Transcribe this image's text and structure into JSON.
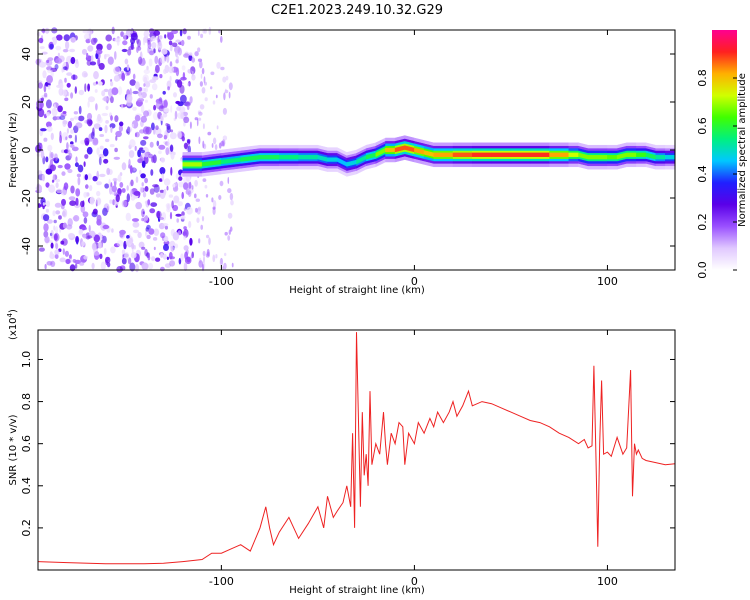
{
  "title": "C2E1.2023.249.10.32.G29",
  "chart_data": [
    {
      "type": "heatmap",
      "xlabel": "Height of straight line (km)",
      "ylabel": "Frequency (Hz)",
      "xlim": [
        -195,
        135
      ],
      "ylim": [
        -50,
        50
      ],
      "x_ticks": [
        -100,
        0,
        100
      ],
      "x_tick_labels": [
        "-100",
        "0",
        "100"
      ],
      "y_ticks": [
        -40,
        -20,
        0,
        20,
        40
      ],
      "y_tick_labels": [
        "-40",
        "-20",
        "0",
        "20",
        "40"
      ],
      "grid": false,
      "colorbar": {
        "label": "Normalized spectral amplitude",
        "range": [
          0,
          1
        ],
        "ticks": [
          0.0,
          0.2,
          0.4,
          0.6,
          0.8
        ],
        "tick_labels": [
          "0.0",
          "0.2",
          "0.4",
          "0.6",
          "0.8"
        ],
        "colormap": [
          "#ffffff",
          "#e0c8ff",
          "#9a50ff",
          "#5a00e8",
          "#2020ff",
          "#00c8ff",
          "#00f080",
          "#40ff00",
          "#d0ff00",
          "#ffb000",
          "#ff2020",
          "#ff0090"
        ]
      },
      "ridge": {
        "x": [
          -120,
          -110,
          -100,
          -90,
          -80,
          -70,
          -60,
          -50,
          -45,
          -40,
          -35,
          -30,
          -25,
          -20,
          -15,
          -10,
          -5,
          0,
          5,
          10,
          20,
          30,
          40,
          50,
          60,
          70,
          80,
          85,
          90,
          95,
          100,
          105,
          110,
          115,
          120,
          125,
          130,
          135
        ],
        "y": [
          -6,
          -6,
          -5,
          -4,
          -3,
          -3,
          -3,
          -3,
          -4,
          -4,
          -6,
          -5,
          -3,
          -2,
          0,
          0,
          1,
          0,
          -1,
          -2,
          -2,
          -2,
          -2,
          -2,
          -2,
          -2,
          -2,
          -2,
          -3,
          -3,
          -3,
          -3,
          -2,
          -2,
          -2,
          -3,
          -3,
          -3
        ],
        "amplitude": [
          0.75,
          0.65,
          0.55,
          0.55,
          0.6,
          0.55,
          0.55,
          0.5,
          0.5,
          0.45,
          0.45,
          0.5,
          0.55,
          0.6,
          0.75,
          0.85,
          0.9,
          0.85,
          0.8,
          0.8,
          0.85,
          0.9,
          0.9,
          0.9,
          0.9,
          0.9,
          0.75,
          0.7,
          0.65,
          0.7,
          0.65,
          0.65,
          0.7,
          0.65,
          0.6,
          0.55,
          0.5,
          0.45
        ]
      },
      "noise_region_x": [
        -195,
        -120
      ]
    },
    {
      "type": "line",
      "xlabel": "Height of straight line (km)",
      "ylabel": "SNR (10 * v/v)",
      "y_multiplier": "(x10",
      "y_multiplier_exp": "4",
      "y_multiplier_close": ")",
      "xlim": [
        -195,
        135
      ],
      "ylim": [
        0,
        11400
      ],
      "x_ticks": [
        -100,
        0,
        100
      ],
      "x_tick_labels": [
        "-100",
        "0",
        "100"
      ],
      "y_ticks": [
        2000,
        4000,
        6000,
        8000,
        10000
      ],
      "y_tick_labels": [
        "0.2",
        "0.4",
        "0.6",
        "0.8",
        "1.0"
      ],
      "grid": false,
      "line_color": "#ee2222",
      "series": [
        {
          "x": [
            -195,
            -180,
            -160,
            -140,
            -130,
            -120,
            -110,
            -105,
            -100,
            -95,
            -90,
            -85,
            -80,
            -77,
            -75,
            -73,
            -70,
            -65,
            -60,
            -55,
            -50,
            -47,
            -45,
            -42,
            -40,
            -37,
            -35,
            -33,
            -32,
            -31,
            -30,
            -28,
            -27,
            -26,
            -25,
            -24,
            -23,
            -22,
            -20,
            -18,
            -16,
            -15,
            -14,
            -12,
            -10,
            -8,
            -6,
            -5,
            -3,
            0,
            2,
            5,
            8,
            10,
            12,
            15,
            18,
            20,
            22,
            25,
            28,
            30,
            35,
            40,
            45,
            50,
            55,
            60,
            65,
            70,
            75,
            80,
            85,
            88,
            90,
            92,
            93,
            94,
            95,
            96,
            97,
            98,
            100,
            102,
            105,
            108,
            110,
            112,
            113,
            114,
            115,
            116,
            118,
            120,
            125,
            130,
            135
          ],
          "y": [
            400,
            350,
            300,
            300,
            320,
            400,
            500,
            800,
            800,
            1000,
            1200,
            900,
            2000,
            3000,
            2000,
            1200,
            1800,
            2500,
            1500,
            2200,
            3000,
            2000,
            3500,
            2500,
            2800,
            3200,
            4000,
            3000,
            6500,
            2000,
            11300,
            3000,
            7500,
            4500,
            5500,
            4000,
            8500,
            5000,
            6000,
            5500,
            7500,
            6000,
            5000,
            6500,
            6000,
            7000,
            6800,
            5000,
            6500,
            6000,
            7000,
            6500,
            7200,
            6800,
            7500,
            7000,
            7500,
            8000,
            7300,
            7800,
            8500,
            7800,
            8000,
            7900,
            7700,
            7500,
            7300,
            7100,
            7000,
            6800,
            6500,
            6300,
            6000,
            6200,
            5800,
            5900,
            9700,
            5500,
            1100,
            6000,
            9000,
            5500,
            5600,
            5400,
            6300,
            5500,
            5800,
            9500,
            3500,
            6000,
            5500,
            5700,
            5300,
            5200,
            5100,
            5000,
            5050
          ]
        }
      ]
    }
  ]
}
